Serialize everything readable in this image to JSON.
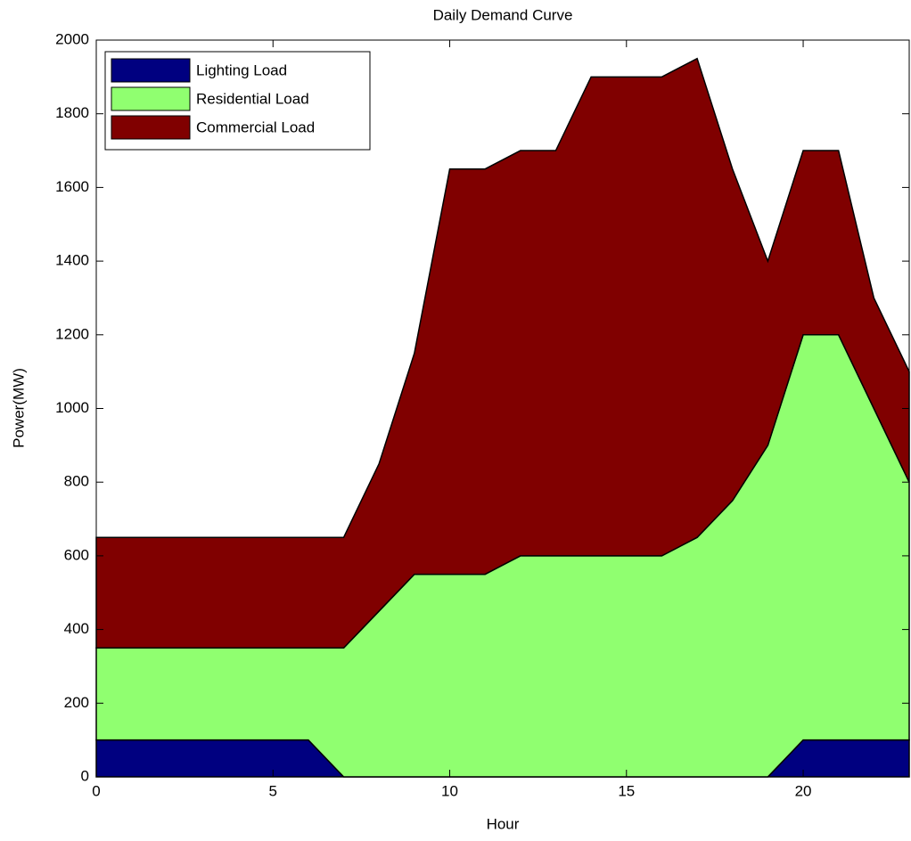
{
  "chart_data": {
    "type": "stacked_area",
    "title": "Daily Demand Curve",
    "xlabel": "Hour",
    "ylabel": "Power(MW)",
    "x": [
      0,
      1,
      2,
      3,
      4,
      5,
      6,
      7,
      8,
      9,
      10,
      11,
      12,
      13,
      14,
      15,
      16,
      17,
      18,
      19,
      20,
      21,
      22,
      23
    ],
    "series": [
      {
        "name": "Lighting Load",
        "color": "#000080",
        "values": [
          100,
          100,
          100,
          100,
          100,
          100,
          100,
          0,
          0,
          0,
          0,
          0,
          0,
          0,
          0,
          0,
          0,
          0,
          0,
          0,
          100,
          100,
          100,
          100
        ]
      },
      {
        "name": "Residential Load",
        "color": "#90ff70",
        "values": [
          250,
          250,
          250,
          250,
          250,
          250,
          250,
          350,
          450,
          550,
          550,
          550,
          600,
          600,
          600,
          600,
          600,
          650,
          750,
          900,
          1100,
          1100,
          900,
          700
        ]
      },
      {
        "name": "Commercial Load",
        "color": "#800000",
        "values": [
          300,
          300,
          300,
          300,
          300,
          300,
          300,
          300,
          400,
          600,
          1100,
          1100,
          1100,
          1100,
          1300,
          1300,
          1300,
          1300,
          900,
          500,
          500,
          500,
          300,
          300
        ]
      }
    ],
    "xlim": [
      0,
      23
    ],
    "xticks": [
      0,
      5,
      10,
      15,
      20
    ],
    "ylim": [
      0,
      2000
    ],
    "yticks": [
      0,
      200,
      400,
      600,
      800,
      1000,
      1200,
      1400,
      1600,
      1800,
      2000
    ],
    "legend": "upper left"
  }
}
